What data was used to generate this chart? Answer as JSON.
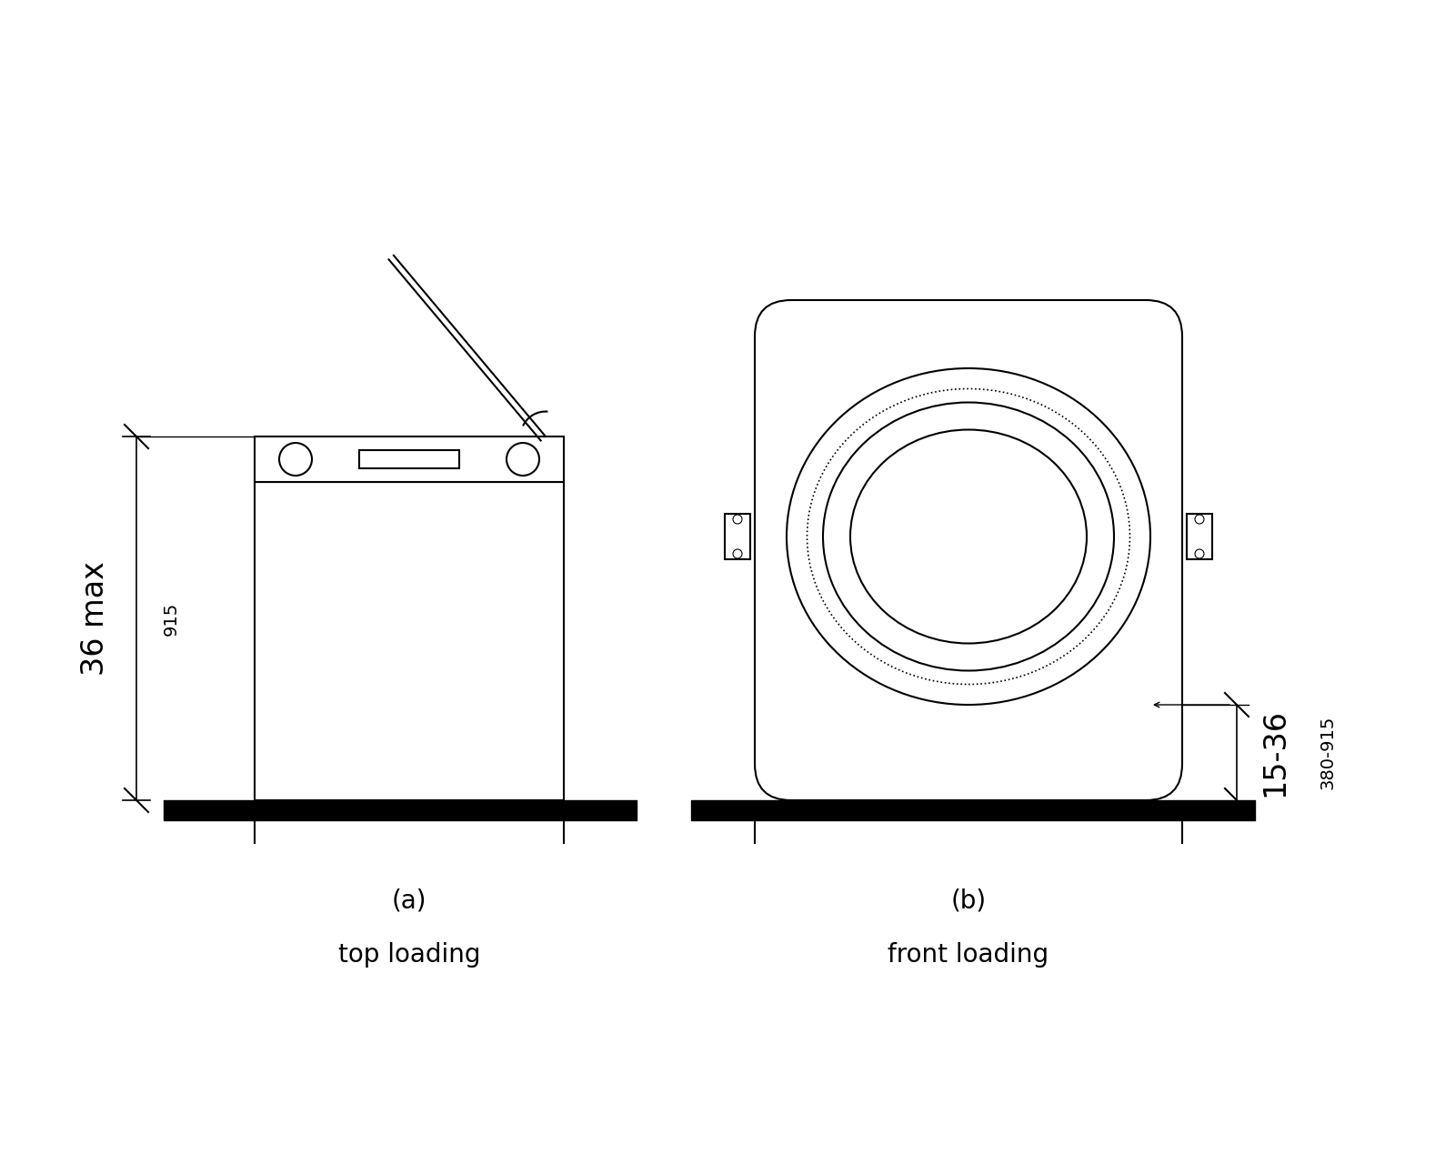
{
  "bg_color": "#ffffff",
  "line_color": "#000000",
  "label_a": "(a)",
  "label_b": "(b)",
  "subtitle_a": "top loading",
  "subtitle_b": "front loading",
  "dim_a_major": "36 max",
  "dim_a_minor": "915",
  "dim_b_major": "15-36",
  "dim_b_minor": "380-915",
  "fig_width": 16.0,
  "fig_height": 12.8,
  "dpi": 100
}
